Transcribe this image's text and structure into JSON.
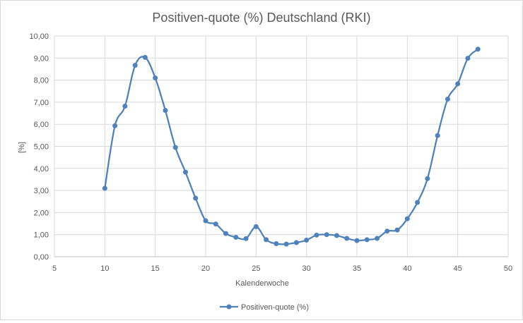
{
  "chart_data": {
    "type": "line",
    "title": "Positiven-quote (%) Deutschland (RKI)",
    "xlabel": "Kalenderwoche",
    "ylabel": "[%]",
    "xlim": [
      5,
      50
    ],
    "ylim": [
      0,
      10
    ],
    "x_ticks": [
      "5",
      "10",
      "15",
      "20",
      "25",
      "30",
      "35",
      "40",
      "45",
      "50"
    ],
    "y_ticks": [
      "0,00",
      "1,00",
      "2,00",
      "3,00",
      "4,00",
      "5,00",
      "6,00",
      "7,00",
      "8,00",
      "9,00",
      "10,00"
    ],
    "grid": true,
    "legend_position": "bottom",
    "series": [
      {
        "name": "Positiven-quote (%)",
        "color": "#4f81bd",
        "x": [
          10,
          11,
          12,
          13,
          14,
          15,
          16,
          17,
          18,
          19,
          20,
          21,
          22,
          23,
          24,
          25,
          26,
          27,
          28,
          29,
          30,
          31,
          32,
          33,
          34,
          35,
          36,
          37,
          38,
          39,
          40,
          41,
          42,
          43,
          44,
          45,
          46,
          47
        ],
        "y": [
          3.1,
          5.93,
          6.82,
          8.67,
          9.03,
          8.1,
          6.63,
          4.95,
          3.83,
          2.65,
          1.63,
          1.48,
          1.05,
          0.88,
          0.82,
          1.36,
          0.77,
          0.59,
          0.57,
          0.64,
          0.75,
          0.98,
          1.0,
          0.96,
          0.83,
          0.73,
          0.77,
          0.83,
          1.16,
          1.21,
          1.72,
          2.46,
          3.54,
          5.49,
          7.14,
          7.83,
          8.99,
          9.4
        ]
      }
    ]
  }
}
